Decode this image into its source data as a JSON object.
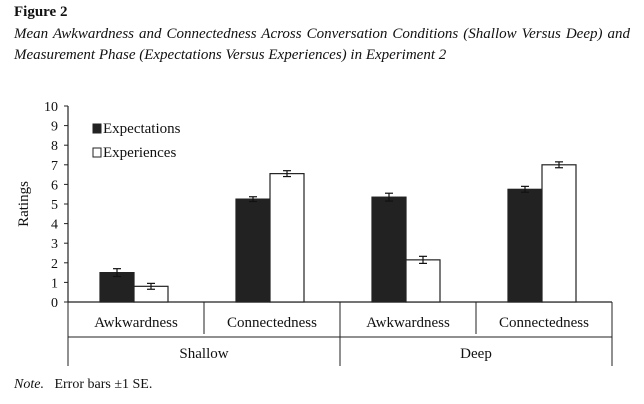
{
  "figure_label": "Figure 2",
  "title": "Mean Awkwardness and Connectedness Across Conversation Conditions (Shallow Versus Deep) and Measurement Phase (Expectations Versus Experiences) in Experiment 2",
  "note_label": "Note.",
  "note_text": "Error bars ±1 SE.",
  "chart_data": {
    "type": "bar",
    "ylabel": "Ratings",
    "ylim": [
      0,
      10
    ],
    "yticks": [
      "0",
      "1",
      "2",
      "3",
      "4",
      "5",
      "6",
      "7",
      "8",
      "9",
      "10"
    ],
    "groups": [
      "Shallow",
      "Deep"
    ],
    "categories": [
      "Awkwardness",
      "Connectedness",
      "Awkwardness",
      "Connectedness"
    ],
    "legend_position": "top-left",
    "series": [
      {
        "name": "Expectations",
        "color": "#222222",
        "values": [
          1.5,
          5.25,
          5.35,
          5.75
        ],
        "se": [
          0.2,
          0.12,
          0.2,
          0.15
        ]
      },
      {
        "name": "Experiences",
        "color": "#ffffff",
        "values": [
          0.8,
          6.55,
          2.15,
          7.0
        ],
        "se": [
          0.15,
          0.15,
          0.18,
          0.15
        ]
      }
    ]
  }
}
